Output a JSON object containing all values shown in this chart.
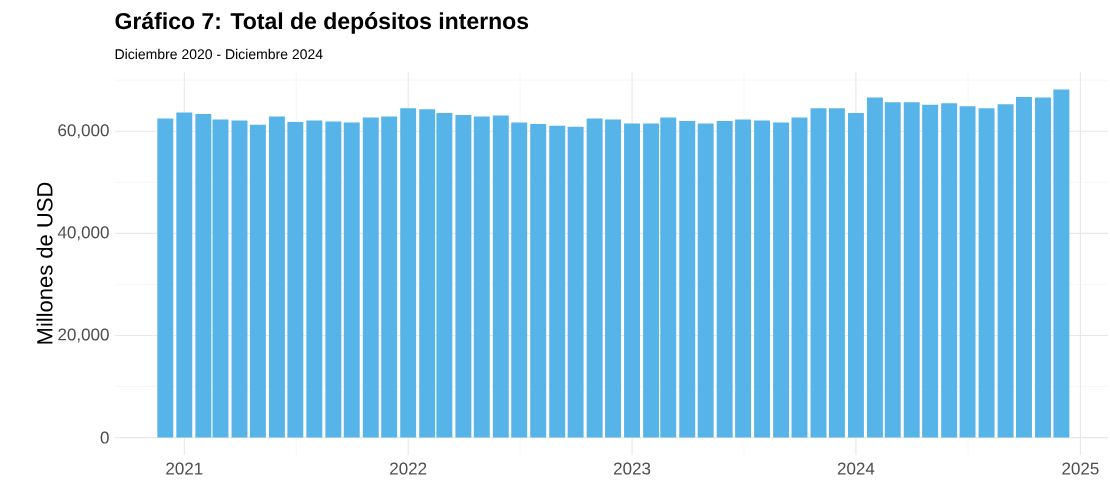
{
  "chart_data": {
    "type": "bar",
    "title": "Gráfico 7:  Total de depósitos internos",
    "subtitle": "Diciembre 2020  -  Diciembre 2024",
    "ylabel": "Millones de USD",
    "x": [
      "2020-12",
      "2021-01",
      "2021-02",
      "2021-03",
      "2021-04",
      "2021-05",
      "2021-06",
      "2021-07",
      "2021-08",
      "2021-09",
      "2021-10",
      "2021-11",
      "2021-12",
      "2022-01",
      "2022-02",
      "2022-03",
      "2022-04",
      "2022-05",
      "2022-06",
      "2022-07",
      "2022-08",
      "2022-09",
      "2022-10",
      "2022-11",
      "2022-12",
      "2023-01",
      "2023-02",
      "2023-03",
      "2023-04",
      "2023-05",
      "2023-06",
      "2023-07",
      "2023-08",
      "2023-09",
      "2023-10",
      "2023-11",
      "2023-12",
      "2024-01",
      "2024-02",
      "2024-03",
      "2024-04",
      "2024-05",
      "2024-06",
      "2024-07",
      "2024-08",
      "2024-09",
      "2024-10",
      "2024-11",
      "2024-12"
    ],
    "values": [
      62500,
      63700,
      63400,
      62300,
      62100,
      61300,
      62900,
      61800,
      62100,
      61900,
      61700,
      62700,
      62900,
      64500,
      64300,
      63600,
      63200,
      62900,
      63100,
      61700,
      61400,
      61100,
      60900,
      62500,
      62300,
      61500,
      61500,
      62700,
      62000,
      61500,
      62000,
      62300,
      62100,
      61700,
      62700,
      64500,
      64500,
      63600,
      66600,
      65700,
      65700,
      65200,
      65500,
      64900,
      64500,
      65300,
      66700,
      66600,
      68200
    ],
    "color": "#56b4e9",
    "xlim": [
      "2020-09-10",
      "2025-02-15"
    ],
    "xticks": [
      "2021",
      "2022",
      "2023",
      "2024",
      "2025"
    ],
    "ylim": [
      -3410,
      71610
    ],
    "yticks": [
      0,
      {
        "value": 20000,
        "label": "20,000"
      },
      {
        "value": 40000,
        "label": "40,000"
      },
      {
        "value": 60000,
        "label": "60,000"
      }
    ],
    "grid": true
  }
}
